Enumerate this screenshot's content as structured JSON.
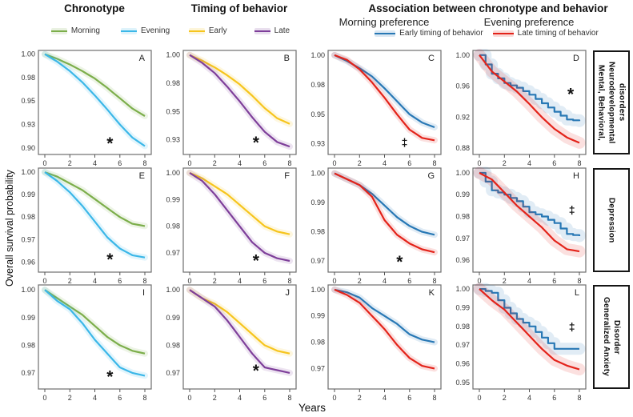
{
  "figure": {
    "ylabel": "Overall survival probability",
    "xlabel": "Years",
    "col_group_titles": [
      "Chronotype",
      "Timing of behavior",
      "Association between chronotype and behavior"
    ],
    "subheaders": [
      "Morning preference",
      "Evening preference"
    ],
    "row_labels": [
      "Mental, Behavioral, Neurodevelopmental disorders",
      "Depression",
      "Generalized Anxiety Disorder"
    ],
    "legends": [
      {
        "items": [
          {
            "label": "Morning",
            "color": "#7CAE4B"
          },
          {
            "label": "Evening",
            "color": "#3BB7E8"
          }
        ]
      },
      {
        "items": [
          {
            "label": "Early",
            "color": "#F6C51E"
          },
          {
            "label": "Late",
            "color": "#7E3F9A"
          }
        ]
      },
      {
        "items": [
          {
            "label": "Early timing of behavior",
            "color": "#2878B5"
          },
          {
            "label": "Late timing of behavior",
            "color": "#E3231A"
          }
        ]
      }
    ],
    "significance_symbols": {
      "asterisk": "*",
      "double_dagger": "‡"
    }
  },
  "chart_data": {
    "type": "line",
    "xlabel": "Years",
    "ylabel": "Overall survival probability",
    "x": [
      0,
      1,
      2,
      3,
      4,
      5,
      6,
      7,
      8
    ],
    "xticks": [
      0,
      2,
      4,
      6,
      8
    ],
    "panels": [
      {
        "letter": "A",
        "row": 0,
        "col": 0,
        "group": "Chronotype",
        "ylim": [
          0.893,
          1.004
        ],
        "yticks": [
          {
            "label": "1.00",
            "v": 1.0
          },
          {
            "label": "0.98",
            "v": 0.975
          },
          {
            "label": "0.95",
            "v": 0.95
          },
          {
            "label": "0.93",
            "v": 0.925
          },
          {
            "label": "0.90",
            "v": 0.9
          }
        ],
        "annotation": {
          "symbol": "*",
          "x": 5.2,
          "y": 0.906
        },
        "series": [
          {
            "name": "Morning",
            "color": "#7CAE4B",
            "values": [
              1.0,
              0.995,
              0.989,
              0.982,
              0.974,
              0.964,
              0.953,
              0.942,
              0.934
            ]
          },
          {
            "name": "Evening",
            "color": "#3BB7E8",
            "values": [
              1.0,
              0.992,
              0.982,
              0.97,
              0.956,
              0.941,
              0.925,
              0.911,
              0.902
            ]
          }
        ]
      },
      {
        "letter": "B",
        "row": 0,
        "col": 1,
        "group": "Timing of behavior",
        "ylim": [
          0.912,
          1.004
        ],
        "yticks": [
          {
            "label": "1.00",
            "v": 1.0
          },
          {
            "label": "0.98",
            "v": 0.975
          },
          {
            "label": "0.95",
            "v": 0.95
          },
          {
            "label": "0.93",
            "v": 0.925
          }
        ],
        "annotation": {
          "symbol": "*",
          "x": 5.3,
          "y": 0.9235
        },
        "series": [
          {
            "name": "Early",
            "color": "#F6C51E",
            "values": [
              1.0,
              0.995,
              0.989,
              0.982,
              0.974,
              0.964,
              0.953,
              0.944,
              0.939
            ]
          },
          {
            "name": "Late",
            "color": "#7E3F9A",
            "values": [
              1.0,
              0.993,
              0.984,
              0.972,
              0.959,
              0.945,
              0.932,
              0.923,
              0.919
            ]
          }
        ]
      },
      {
        "letter": "C",
        "row": 0,
        "col": 2,
        "group": "Morning preference",
        "ylim": [
          0.916,
          1.004
        ],
        "yticks": [
          {
            "label": "1.00",
            "v": 1.0
          },
          {
            "label": "0.98",
            "v": 0.975
          },
          {
            "label": "0.95",
            "v": 0.95
          },
          {
            "label": "0.93",
            "v": 0.925
          }
        ],
        "annotation": {
          "symbol": "‡",
          "x": 5.6,
          "y": 0.9265
        },
        "series": [
          {
            "name": "Early timing of behavior",
            "color": "#2878B5",
            "values": [
              1.0,
              0.995,
              0.989,
              0.982,
              0.972,
              0.961,
              0.95,
              0.943,
              0.939
            ]
          },
          {
            "name": "Late timing of behavior",
            "color": "#E3231A",
            "values": [
              1.0,
              0.996,
              0.988,
              0.977,
              0.964,
              0.95,
              0.937,
              0.93,
              0.928
            ]
          }
        ]
      },
      {
        "letter": "D",
        "row": 0,
        "col": 3,
        "group": "Evening preference",
        "ylim": [
          0.872,
          1.006
        ],
        "yticks": [
          {
            "label": "1.00",
            "v": 1.0
          },
          {
            "label": "0.96",
            "v": 0.96
          },
          {
            "label": "0.92",
            "v": 0.92
          },
          {
            "label": "0.88",
            "v": 0.88
          }
        ],
        "annotation": {
          "symbol": "*",
          "x": 7.3,
          "y": 0.951
        },
        "series": [
          {
            "name": "Early timing of behavior",
            "color": "#2878B5",
            "step": true,
            "wide": true,
            "values": [
              1.0,
              0.976,
              0.964,
              0.958,
              0.949,
              0.938,
              0.927,
              0.917,
              0.915
            ]
          },
          {
            "name": "Late timing of behavior",
            "color": "#E3231A",
            "wide": true,
            "values": [
              1.0,
              0.979,
              0.966,
              0.953,
              0.937,
              0.92,
              0.905,
              0.894,
              0.887
            ]
          }
        ]
      },
      {
        "letter": "E",
        "row": 1,
        "col": 0,
        "group": "Chronotype",
        "ylim": [
          0.9555,
          1.0018
        ],
        "yticks": [
          {
            "label": "1.00",
            "v": 1.0
          },
          {
            "label": "0.99",
            "v": 0.99
          },
          {
            "label": "0.98",
            "v": 0.98
          },
          {
            "label": "0.97",
            "v": 0.97
          },
          {
            "label": "0.96",
            "v": 0.96
          }
        ],
        "annotation": {
          "symbol": "*",
          "x": 5.2,
          "y": 0.9615
        },
        "series": [
          {
            "name": "Morning",
            "color": "#7CAE4B",
            "values": [
              1.0,
              0.998,
              0.995,
              0.992,
              0.988,
              0.984,
              0.98,
              0.977,
              0.976
            ]
          },
          {
            "name": "Evening",
            "color": "#3BB7E8",
            "values": [
              1.0,
              0.996,
              0.991,
              0.985,
              0.978,
              0.971,
              0.966,
              0.963,
              0.962
            ]
          }
        ]
      },
      {
        "letter": "F",
        "row": 1,
        "col": 1,
        "group": "Timing of behavior",
        "ylim": [
          0.9628,
          1.0018
        ],
        "yticks": [
          {
            "label": "1.00",
            "v": 1.0
          },
          {
            "label": "0.99",
            "v": 0.99
          },
          {
            "label": "0.98",
            "v": 0.98
          },
          {
            "label": "0.97",
            "v": 0.97
          }
        ],
        "annotation": {
          "symbol": "*",
          "x": 5.3,
          "y": 0.9675
        },
        "series": [
          {
            "name": "Early",
            "color": "#F6C51E",
            "values": [
              1.0,
              0.998,
              0.995,
              0.992,
              0.988,
              0.984,
              0.98,
              0.978,
              0.977
            ]
          },
          {
            "name": "Late",
            "color": "#7E3F9A",
            "values": [
              1.0,
              0.997,
              0.992,
              0.986,
              0.98,
              0.974,
              0.97,
              0.968,
              0.967
            ]
          }
        ]
      },
      {
        "letter": "G",
        "row": 1,
        "col": 2,
        "group": "Morning preference",
        "ylim": [
          0.9662,
          1.0018
        ],
        "yticks": [
          {
            "label": "1.00",
            "v": 1.0
          },
          {
            "label": "0.99",
            "v": 0.99
          },
          {
            "label": "0.98",
            "v": 0.98
          },
          {
            "label": "0.97",
            "v": 0.97
          }
        ],
        "annotation": {
          "symbol": "*",
          "x": 5.2,
          "y": 0.97
        },
        "series": [
          {
            "name": "Early timing of behavior",
            "color": "#2878B5",
            "values": [
              1.0,
              0.998,
              0.996,
              0.993,
              0.989,
              0.985,
              0.982,
              0.98,
              0.979
            ]
          },
          {
            "name": "Late timing of behavior",
            "color": "#E3231A",
            "values": [
              1.0,
              0.998,
              0.996,
              0.992,
              0.984,
              0.979,
              0.976,
              0.974,
              0.973
            ]
          }
        ]
      },
      {
        "letter": "H",
        "row": 1,
        "col": 3,
        "group": "Evening preference",
        "ylim": [
          0.9545,
          1.0022
        ],
        "yticks": [
          {
            "label": "1.00",
            "v": 1.0
          },
          {
            "label": "0.99",
            "v": 0.99
          },
          {
            "label": "0.98",
            "v": 0.98
          },
          {
            "label": "0.97",
            "v": 0.97
          },
          {
            "label": "0.96",
            "v": 0.96
          }
        ],
        "annotation": {
          "symbol": "‡",
          "x": 7.4,
          "y": 0.9832
        },
        "series": [
          {
            "name": "Early timing of behavior",
            "color": "#2878B5",
            "step": true,
            "wide": true,
            "values": [
              1.0,
              0.992,
              0.99,
              0.987,
              0.982,
              0.98,
              0.977,
              0.972,
              0.971
            ]
          },
          {
            "name": "Late timing of behavior",
            "color": "#E3231A",
            "wide": true,
            "values": [
              1.0,
              0.997,
              0.991,
              0.985,
              0.98,
              0.975,
              0.969,
              0.965,
              0.964
            ]
          }
        ]
      },
      {
        "letter": "I",
        "row": 2,
        "col": 0,
        "group": "Chronotype",
        "ylim": [
          0.9642,
          1.0018
        ],
        "yticks": [
          {
            "label": "1.00",
            "v": 1.0
          },
          {
            "label": "0.99",
            "v": 0.99
          },
          {
            "label": "0.98",
            "v": 0.98
          },
          {
            "label": "0.97",
            "v": 0.97
          }
        ],
        "annotation": {
          "symbol": "*",
          "x": 5.2,
          "y": 0.969
        },
        "series": [
          {
            "name": "Morning",
            "color": "#7CAE4B",
            "values": [
              1.0,
              0.997,
              0.994,
              0.991,
              0.987,
              0.983,
              0.98,
              0.978,
              0.977
            ]
          },
          {
            "name": "Evening",
            "color": "#3BB7E8",
            "values": [
              1.0,
              0.996,
              0.993,
              0.988,
              0.982,
              0.977,
              0.972,
              0.97,
              0.969
            ]
          }
        ]
      },
      {
        "letter": "J",
        "row": 2,
        "col": 1,
        "group": "Timing of behavior",
        "ylim": [
          0.9642,
          1.0018
        ],
        "yticks": [
          {
            "label": "1.00",
            "v": 1.0
          },
          {
            "label": "0.99",
            "v": 0.99
          },
          {
            "label": "0.98",
            "v": 0.98
          },
          {
            "label": "0.97",
            "v": 0.97
          }
        ],
        "annotation": {
          "symbol": "*",
          "x": 5.3,
          "y": 0.9712
        },
        "series": [
          {
            "name": "Early",
            "color": "#F6C51E",
            "values": [
              1.0,
              0.997,
              0.995,
              0.992,
              0.988,
              0.984,
              0.98,
              0.978,
              0.977
            ]
          },
          {
            "name": "Late",
            "color": "#7E3F9A",
            "values": [
              1.0,
              0.997,
              0.994,
              0.989,
              0.983,
              0.977,
              0.972,
              0.971,
              0.97
            ]
          }
        ]
      },
      {
        "letter": "K",
        "row": 2,
        "col": 2,
        "group": "Morning preference",
        "ylim": [
          0.9622,
          1.0018
        ],
        "yticks": [
          {
            "label": "1.00",
            "v": 1.0
          },
          {
            "label": "0.99",
            "v": 0.99
          },
          {
            "label": "0.98",
            "v": 0.98
          },
          {
            "label": "0.97",
            "v": 0.97
          }
        ],
        "series": [
          {
            "name": "Early timing of behavior",
            "color": "#2878B5",
            "values": [
              1.0,
              0.999,
              0.997,
              0.993,
              0.99,
              0.987,
              0.983,
              0.981,
              0.98
            ]
          },
          {
            "name": "Late timing of behavior",
            "color": "#E3231A",
            "values": [
              1.0,
              0.998,
              0.995,
              0.99,
              0.985,
              0.979,
              0.974,
              0.971,
              0.97
            ]
          }
        ]
      },
      {
        "letter": "L",
        "row": 2,
        "col": 3,
        "group": "Evening preference",
        "ylim": [
          0.9465,
          1.0022
        ],
        "yticks": [
          {
            "label": "1.00",
            "v": 1.0
          },
          {
            "label": "0.99",
            "v": 0.99
          },
          {
            "label": "0.98",
            "v": 0.98
          },
          {
            "label": "0.97",
            "v": 0.97
          },
          {
            "label": "0.96",
            "v": 0.96
          },
          {
            "label": "0.95",
            "v": 0.95
          }
        ],
        "annotation": {
          "symbol": "‡",
          "x": 7.4,
          "y": 0.98
        },
        "series": [
          {
            "name": "Early timing of behavior",
            "color": "#2878B5",
            "step": true,
            "wide": true,
            "values": [
              1.0,
              0.998,
              0.99,
              0.984,
              0.98,
              0.974,
              0.968,
              0.968,
              0.968
            ]
          },
          {
            "name": "Late timing of behavior",
            "color": "#E3231A",
            "wide": true,
            "values": [
              1.0,
              0.994,
              0.989,
              0.982,
              0.975,
              0.968,
              0.962,
              0.959,
              0.957
            ]
          }
        ]
      }
    ]
  }
}
